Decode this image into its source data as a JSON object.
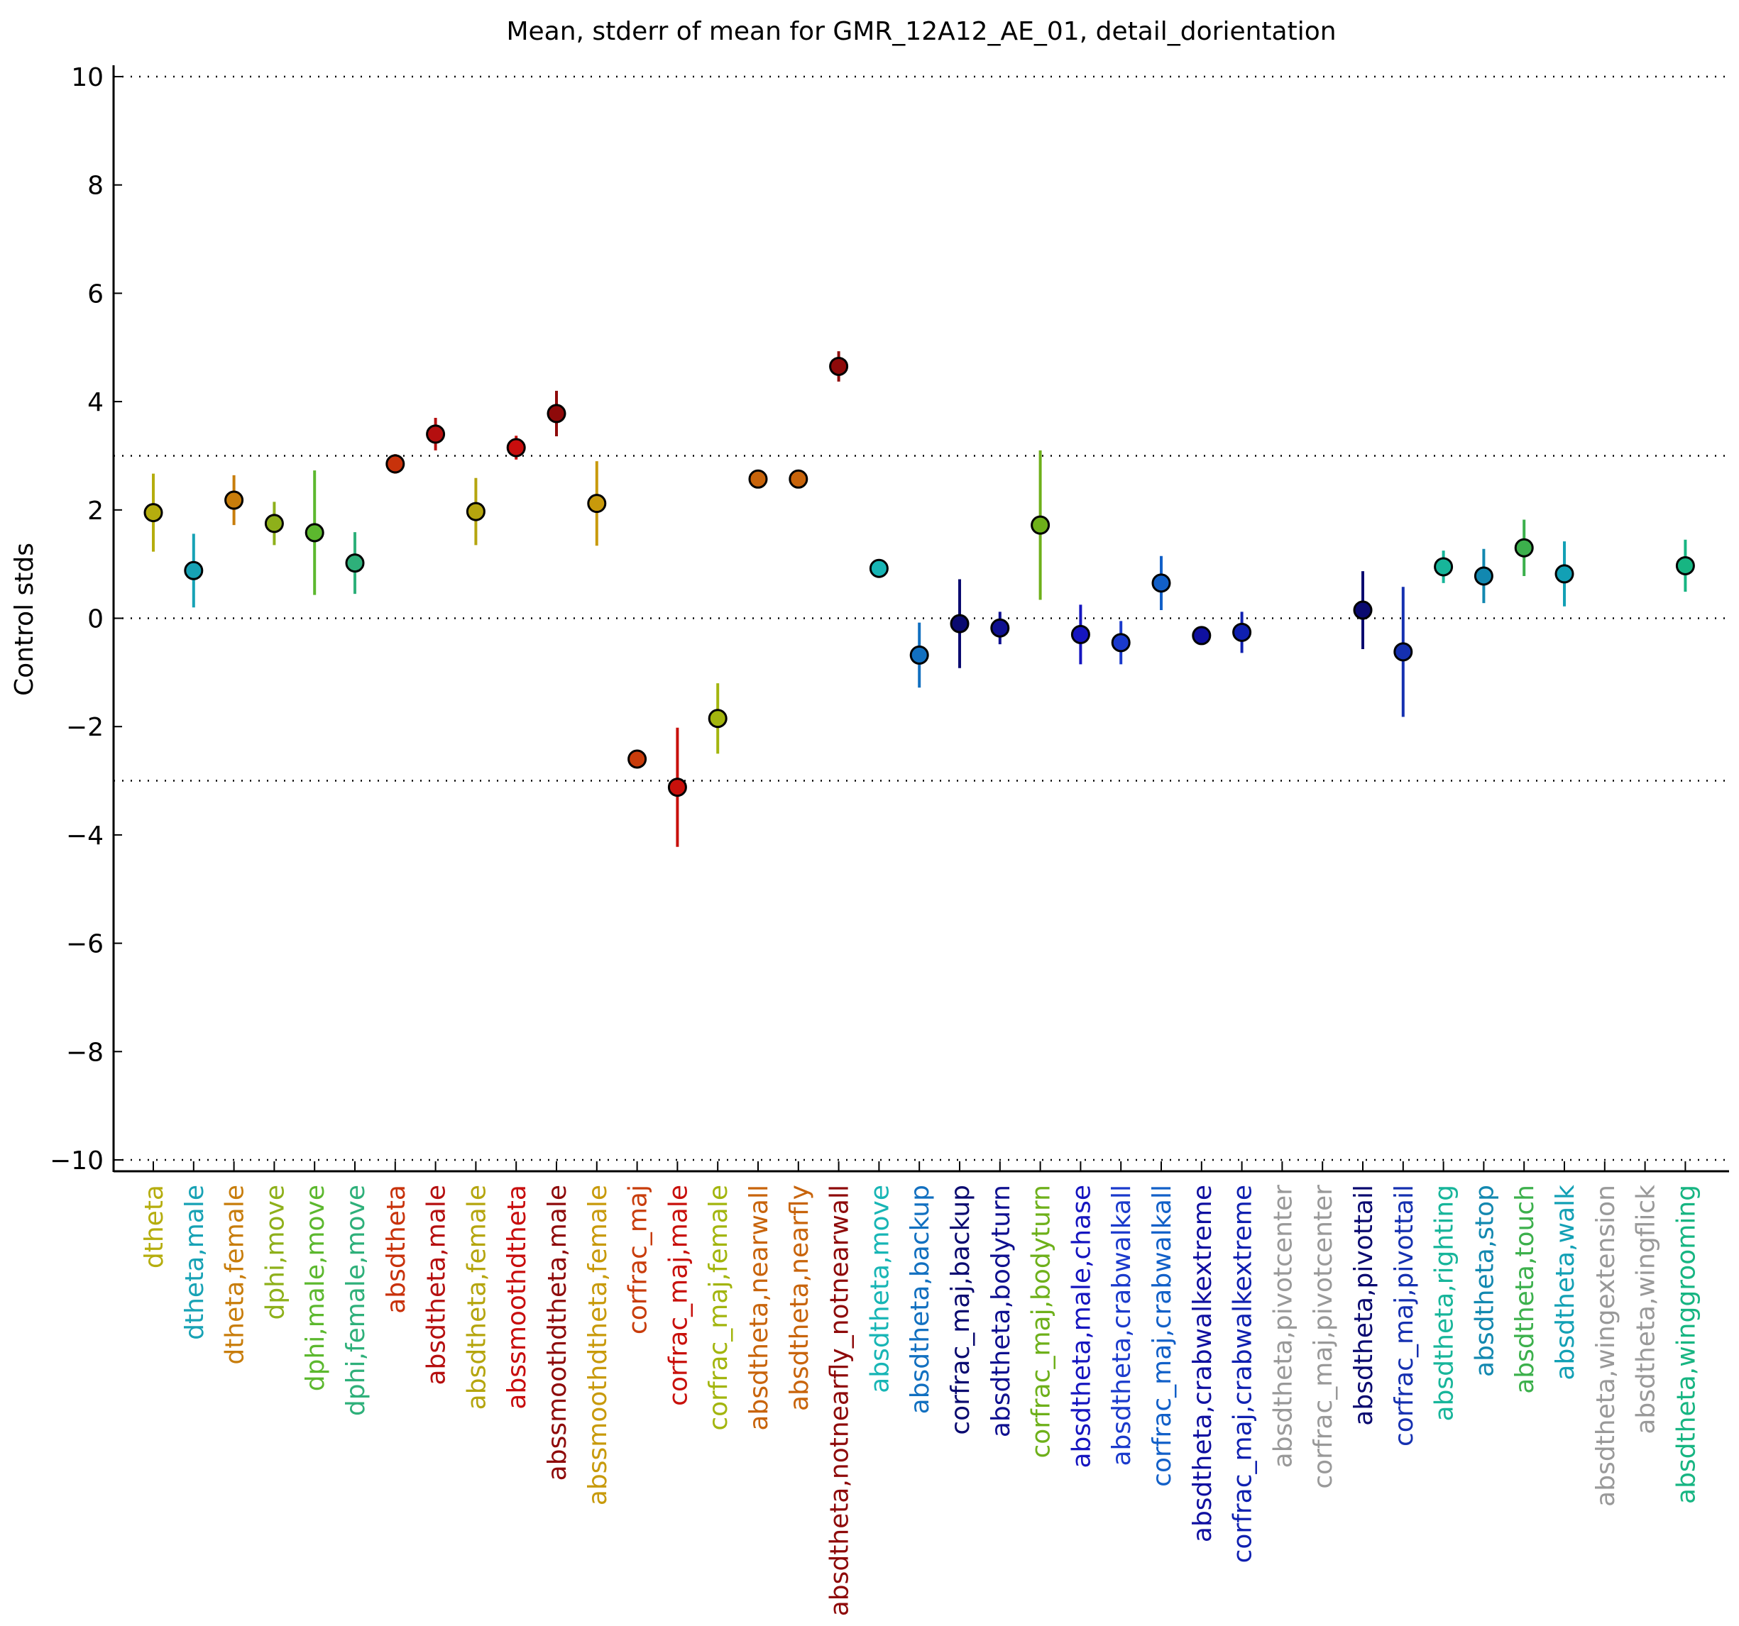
{
  "chart_data": {
    "type": "scatter",
    "title": "Mean, stderr of mean for GMR_12A12_AE_01, detail_dorientation",
    "xlabel": "",
    "ylabel": "Control stds",
    "ylim": [
      -10.2,
      10.2
    ],
    "yticks": [
      10,
      8,
      6,
      4,
      2,
      0,
      -2,
      -4,
      -6,
      -8,
      -10
    ],
    "ytick_labels": [
      "10",
      "8",
      "6",
      "4",
      "2",
      "0",
      "−2",
      "−4",
      "−6",
      "−8",
      "−10"
    ],
    "reference_lines": [
      10,
      3,
      0,
      -3,
      -10
    ],
    "grid": false,
    "legend": "none",
    "points": [
      {
        "label": "dtheta",
        "mean": 1.95,
        "err": 0.72,
        "color": "#b5ad0e"
      },
      {
        "label": "dtheta,male",
        "mean": 0.88,
        "err": 0.68,
        "color": "#17a2b5"
      },
      {
        "label": "dtheta,female",
        "mean": 2.18,
        "err": 0.46,
        "color": "#c87d0b"
      },
      {
        "label": "dphi,move",
        "mean": 1.75,
        "err": 0.4,
        "color": "#8eb01a"
      },
      {
        "label": "dphi,male,move",
        "mean": 1.58,
        "err": 1.15,
        "color": "#5cb82e"
      },
      {
        "label": "dphi,female,move",
        "mean": 1.02,
        "err": 0.57,
        "color": "#2eb07a"
      },
      {
        "label": "absdtheta",
        "mean": 2.85,
        "err": 0.18,
        "color": "#c8320b"
      },
      {
        "label": "absdtheta,male",
        "mean": 3.4,
        "err": 0.3,
        "color": "#b50f0f"
      },
      {
        "label": "absdtheta,female",
        "mean": 1.97,
        "err": 0.62,
        "color": "#b5a50e"
      },
      {
        "label": "abssmoothdtheta",
        "mean": 3.15,
        "err": 0.22,
        "color": "#c80d0d"
      },
      {
        "label": "abssmoothdtheta,male",
        "mean": 3.78,
        "err": 0.42,
        "color": "#8e0a0a"
      },
      {
        "label": "abssmoothdtheta,female",
        "mean": 2.12,
        "err": 0.78,
        "color": "#c89a0b"
      },
      {
        "label": "corfrac_maj",
        "mean": -2.6,
        "err": 0.12,
        "color": "#c83c0b"
      },
      {
        "label": "corfrac_maj,male",
        "mean": -3.12,
        "err": 1.1,
        "color": "#c8100b"
      },
      {
        "label": "corfrac_maj,female",
        "mean": -1.85,
        "err": 0.65,
        "color": "#a3b50e"
      },
      {
        "label": "absdtheta,nearwall",
        "mean": 2.57,
        "err": 0.12,
        "color": "#c8640b"
      },
      {
        "label": "absdtheta,nearfly",
        "mean": 2.57,
        "err": 0.15,
        "color": "#c8640b"
      },
      {
        "label": "absdtheta,notnearfly_notnearwall",
        "mean": 4.65,
        "err": 0.28,
        "color": "#8e0a0a"
      },
      {
        "label": "absdtheta,move",
        "mean": 0.92,
        "err": 0.05,
        "color": "#17b5b5"
      },
      {
        "label": "absdtheta,backup",
        "mean": -0.68,
        "err": 0.6,
        "color": "#1270c0"
      },
      {
        "label": "corfrac_maj,backup",
        "mean": -0.1,
        "err": 0.82,
        "color": "#0a0a70"
      },
      {
        "label": "absdtheta,bodyturn",
        "mean": -0.18,
        "err": 0.3,
        "color": "#0f1090"
      },
      {
        "label": "corfrac_maj,bodyturn",
        "mean": 1.72,
        "err": 1.38,
        "color": "#6eb01a"
      },
      {
        "label": "absdtheta,male,chase",
        "mean": -0.3,
        "err": 0.55,
        "color": "#1515c0"
      },
      {
        "label": "absdtheta,crabwalkall",
        "mean": -0.45,
        "err": 0.4,
        "color": "#1a3acc"
      },
      {
        "label": "corfrac_maj,crabwalkall",
        "mean": 0.65,
        "err": 0.5,
        "color": "#1260c8"
      },
      {
        "label": "absdtheta,crabwalkextreme",
        "mean": -0.32,
        "err": 0.05,
        "color": "#0f10a0"
      },
      {
        "label": "corfrac_maj,crabwalkextreme",
        "mean": -0.26,
        "err": 0.38,
        "color": "#0f20b0"
      },
      {
        "label": "absdtheta,pivotcenter",
        "mean": null,
        "err": null,
        "color": "#999999"
      },
      {
        "label": "corfrac_maj,pivotcenter",
        "mean": null,
        "err": null,
        "color": "#999999"
      },
      {
        "label": "absdtheta,pivottail",
        "mean": 0.15,
        "err": 0.72,
        "color": "#0a0a70"
      },
      {
        "label": "corfrac_maj,pivottail",
        "mean": -0.62,
        "err": 1.2,
        "color": "#1530b0"
      },
      {
        "label": "absdtheta,righting",
        "mean": 0.95,
        "err": 0.3,
        "color": "#17b59a"
      },
      {
        "label": "absdtheta,stop",
        "mean": 0.78,
        "err": 0.5,
        "color": "#1288b0"
      },
      {
        "label": "absdtheta,touch",
        "mean": 1.3,
        "err": 0.52,
        "color": "#3cb04c"
      },
      {
        "label": "absdtheta,walk",
        "mean": 0.82,
        "err": 0.6,
        "color": "#12a0b5"
      },
      {
        "label": "absdtheta,wingextension",
        "mean": null,
        "err": null,
        "color": "#999999"
      },
      {
        "label": "absdtheta,wingflick",
        "mean": null,
        "err": null,
        "color": "#999999"
      },
      {
        "label": "absdtheta,winggrooming",
        "mean": 0.97,
        "err": 0.48,
        "color": "#17b582"
      }
    ]
  }
}
